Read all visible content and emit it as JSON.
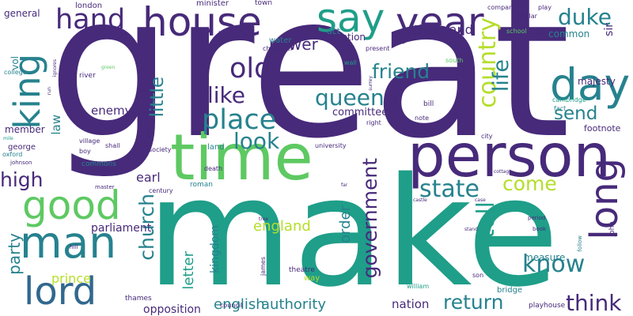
{
  "palette": {
    "purple": "#472A7A",
    "blue": "#31688E",
    "teal": "#26828E",
    "green": "#1F9E89",
    "lightgreen": "#5EC962",
    "yellow": "#B5DE2B",
    "background": "#FFFFFF"
  },
  "words": [
    {
      "text": "great",
      "color": "purple"
    },
    {
      "text": "make",
      "color": "green"
    },
    {
      "text": "time",
      "color": "lightgreen"
    },
    {
      "text": "person",
      "color": "purple"
    },
    {
      "text": "house",
      "color": "purple"
    },
    {
      "text": "year",
      "color": "purple"
    },
    {
      "text": "say",
      "color": "green"
    },
    {
      "text": "day",
      "color": "teal"
    },
    {
      "text": "king",
      "color": "teal"
    },
    {
      "text": "good",
      "color": "lightgreen"
    },
    {
      "text": "man",
      "color": "teal"
    },
    {
      "text": "lord",
      "color": "blue"
    },
    {
      "text": "long",
      "color": "purple"
    },
    {
      "text": "place",
      "color": "teal"
    },
    {
      "text": "hand",
      "color": "purple"
    },
    {
      "text": "duke",
      "color": "teal"
    },
    {
      "text": "old",
      "color": "purple"
    },
    {
      "text": "like",
      "color": "purple"
    },
    {
      "text": "look",
      "color": "teal"
    },
    {
      "text": "queen",
      "color": "teal"
    },
    {
      "text": "friend",
      "color": "teal"
    },
    {
      "text": "country",
      "color": "yellow"
    },
    {
      "text": "life",
      "color": "teal"
    },
    {
      "text": "little",
      "color": "teal"
    },
    {
      "text": "send",
      "color": "teal"
    },
    {
      "text": "state",
      "color": "teal"
    },
    {
      "text": "come",
      "color": "yellow"
    },
    {
      "text": "know",
      "color": "teal"
    },
    {
      "text": "think",
      "color": "purple"
    },
    {
      "text": "return",
      "color": "teal"
    },
    {
      "text": "tell",
      "color": "green"
    },
    {
      "text": "government",
      "color": "purple"
    },
    {
      "text": "church",
      "color": "teal"
    },
    {
      "text": "party",
      "color": "teal"
    },
    {
      "text": "high",
      "color": "purple"
    },
    {
      "text": "enemy",
      "color": "purple"
    },
    {
      "text": "power",
      "color": "purple"
    },
    {
      "text": "thousand",
      "color": "purple"
    },
    {
      "text": "england",
      "color": "yellow"
    },
    {
      "text": "english",
      "color": "teal"
    },
    {
      "text": "authority",
      "color": "teal"
    },
    {
      "text": "letter",
      "color": "green"
    },
    {
      "text": "kingdom",
      "color": "teal"
    },
    {
      "text": "order",
      "color": "teal"
    },
    {
      "text": "prince",
      "color": "yellow"
    },
    {
      "text": "parliament",
      "color": "purple"
    },
    {
      "text": "earl",
      "color": "purple"
    },
    {
      "text": "nation",
      "color": "purple"
    },
    {
      "text": "opposition",
      "color": "purple"
    },
    {
      "text": "law",
      "color": "teal"
    },
    {
      "text": "member",
      "color": "purple"
    },
    {
      "text": "committee",
      "color": "purple"
    },
    {
      "text": "motion",
      "color": "purple"
    },
    {
      "text": "majesty",
      "color": "purple"
    },
    {
      "text": "common",
      "color": "teal"
    },
    {
      "text": "sir",
      "color": "purple"
    },
    {
      "text": "footnote",
      "color": "purple"
    },
    {
      "text": "general",
      "color": "purple"
    },
    {
      "text": "london",
      "color": "purple"
    },
    {
      "text": "minister",
      "color": "purple"
    },
    {
      "text": "vol",
      "color": "teal"
    },
    {
      "text": "measure",
      "color": "teal"
    },
    {
      "text": "act",
      "color": "teal"
    },
    {
      "text": "water",
      "color": "teal"
    },
    {
      "text": "george",
      "color": "purple"
    },
    {
      "text": "land",
      "color": "teal"
    },
    {
      "text": "roman",
      "color": "teal"
    },
    {
      "text": "bridge",
      "color": "teal"
    },
    {
      "text": "playhouse",
      "color": "purple"
    },
    {
      "text": "john",
      "color": "purple"
    },
    {
      "text": "town",
      "color": "purple"
    },
    {
      "text": "company",
      "color": "purple"
    },
    {
      "text": "scholar",
      "color": "purple"
    },
    {
      "text": "play",
      "color": "purple"
    },
    {
      "text": "school",
      "color": "lightgreen"
    },
    {
      "text": "college",
      "color": "teal"
    },
    {
      "text": "river",
      "color": "purple"
    },
    {
      "text": "character",
      "color": "purple"
    },
    {
      "text": "present",
      "color": "purple"
    },
    {
      "text": "wall",
      "color": "green"
    },
    {
      "text": "south",
      "color": "lightgreen"
    },
    {
      "text": "bill",
      "color": "purple"
    },
    {
      "text": "note",
      "color": "purple"
    },
    {
      "text": "right",
      "color": "purple"
    },
    {
      "text": "hold",
      "color": "purple"
    },
    {
      "text": "cambridge",
      "color": "green"
    },
    {
      "text": "fact",
      "color": "teal"
    },
    {
      "text": "university",
      "color": "purple"
    },
    {
      "text": "city",
      "color": "purple"
    },
    {
      "text": "society",
      "color": "purple"
    },
    {
      "text": "century",
      "color": "purple"
    },
    {
      "text": "council",
      "color": "purple"
    },
    {
      "text": "death",
      "color": "purple"
    },
    {
      "text": "william",
      "color": "green"
    },
    {
      "text": "james",
      "color": "purple"
    },
    {
      "text": "theatre",
      "color": "purple"
    },
    {
      "text": "way",
      "color": "yellow"
    },
    {
      "text": "son",
      "color": "purple"
    },
    {
      "text": "thames",
      "color": "purple"
    },
    {
      "text": "commons",
      "color": "teal"
    },
    {
      "text": "village",
      "color": "purple"
    },
    {
      "text": "shall",
      "color": "purple"
    },
    {
      "text": "boy",
      "color": "purple"
    },
    {
      "text": "oxford",
      "color": "teal"
    },
    {
      "text": "johnson",
      "color": "purple"
    },
    {
      "text": "mile",
      "color": "green"
    },
    {
      "text": "master",
      "color": "purple"
    },
    {
      "text": "period",
      "color": "purple"
    },
    {
      "text": "book",
      "color": "purple"
    },
    {
      "text": "follow",
      "color": "teal"
    },
    {
      "text": "stand",
      "color": "purple"
    },
    {
      "text": "castle",
      "color": "purple"
    },
    {
      "text": "case",
      "color": "purple"
    },
    {
      "text": "far",
      "color": "purple"
    },
    {
      "text": "cottage",
      "color": "purple"
    },
    {
      "text": "tree",
      "color": "purple"
    },
    {
      "text": "point",
      "color": "purple"
    },
    {
      "text": "road",
      "color": "purple"
    },
    {
      "text": "hill",
      "color": "purple"
    },
    {
      "text": "green",
      "color": "lightgreen"
    },
    {
      "text": "iii",
      "color": "purple"
    },
    {
      "text": "run",
      "color": "purple"
    },
    {
      "text": "surrey",
      "color": "purple"
    },
    {
      "text": "ignores",
      "color": "purple"
    }
  ]
}
